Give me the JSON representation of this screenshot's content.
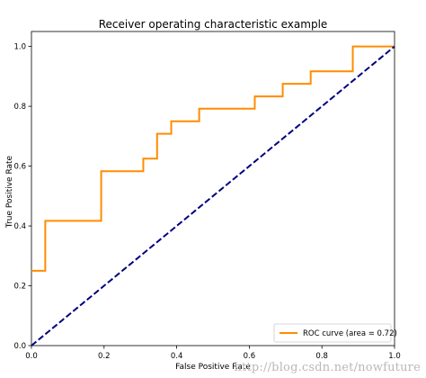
{
  "chart_data": {
    "type": "line",
    "title": "Receiver operating characteristic example",
    "xlabel": "False Positive Rate",
    "ylabel": "True Positive Rate",
    "xlim": [
      0.0,
      1.0
    ],
    "ylim": [
      0.0,
      1.05
    ],
    "xticks": [
      0.0,
      0.2,
      0.4,
      0.6,
      0.8,
      1.0
    ],
    "xtick_labels": [
      "0.0",
      "0.2",
      "0.4",
      "0.6",
      "0.8",
      "1.0"
    ],
    "yticks": [
      0.0,
      0.2,
      0.4,
      0.6,
      0.8,
      1.0
    ],
    "ytick_labels": [
      "0.0",
      "0.2",
      "0.4",
      "0.6",
      "0.8",
      "1.0"
    ],
    "grid": false,
    "legend_position": "lower-right",
    "series": [
      {
        "name": "ROC curve (area = 0.72)",
        "color": "#ff8c00",
        "style": "solid",
        "x": [
          0.0,
          0.038,
          0.038,
          0.192,
          0.192,
          0.308,
          0.308,
          0.346,
          0.346,
          0.385,
          0.385,
          0.462,
          0.462,
          0.615,
          0.615,
          0.692,
          0.692,
          0.769,
          0.769,
          0.885,
          0.885,
          1.0
        ],
        "y": [
          0.25,
          0.25,
          0.417,
          0.417,
          0.583,
          0.583,
          0.625,
          0.625,
          0.708,
          0.708,
          0.75,
          0.75,
          0.792,
          0.792,
          0.833,
          0.833,
          0.875,
          0.875,
          0.917,
          0.917,
          1.0,
          1.0
        ]
      },
      {
        "color": "#000080",
        "style": "dashed",
        "x": [
          0.0,
          1.0
        ],
        "y": [
          0.0,
          1.0
        ]
      }
    ]
  },
  "watermark": "http://blog.csdn.net/nowfuture"
}
